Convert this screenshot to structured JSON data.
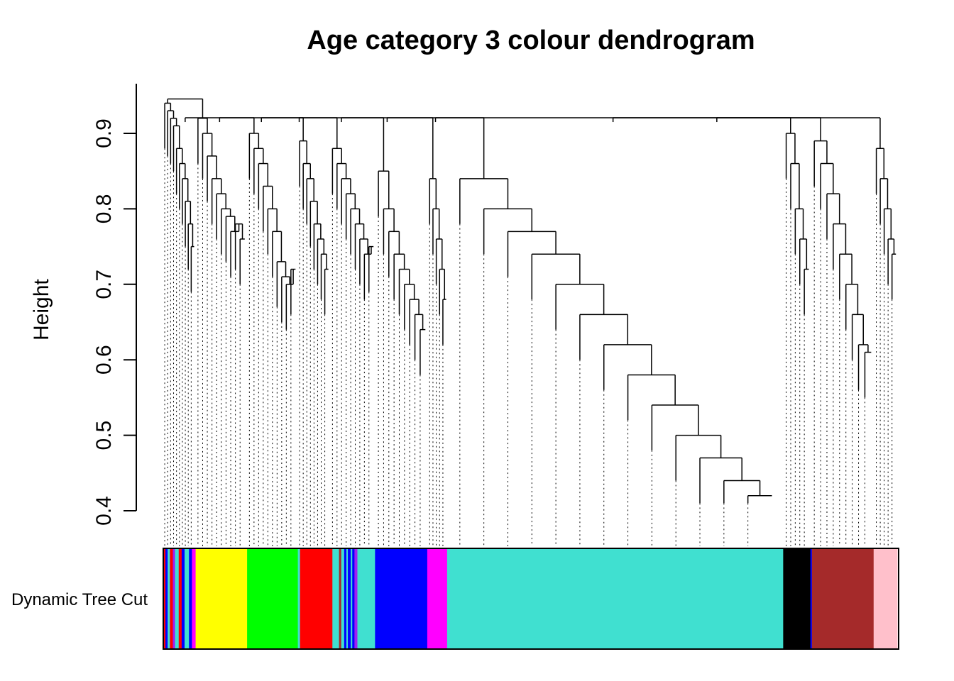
{
  "chart_data": {
    "type": "dendrogram",
    "title": "Age category 3 colour dendrogram",
    "ylabel": "Height",
    "xlabel": "",
    "ylim": [
      0.4,
      0.95
    ],
    "yticks": [
      0.4,
      0.5,
      0.6,
      0.7,
      0.8,
      0.9
    ],
    "color_bar_label": "Dynamic Tree Cut",
    "root_merge_height": 0.915,
    "clusters": [
      {
        "name": "mixed-small",
        "color": "#b0306a",
        "width_fraction": 0.044,
        "merge_heights": [
          0.94,
          0.93,
          0.92,
          0.91,
          0.88,
          0.86,
          0.84,
          0.81,
          0.78,
          0.75
        ]
      },
      {
        "name": "yellow",
        "color": "#ffff00",
        "width_fraction": 0.07,
        "merge_heights": [
          0.92,
          0.9,
          0.87,
          0.84,
          0.82,
          0.8,
          0.79,
          0.77,
          0.78,
          0.76
        ]
      },
      {
        "name": "green",
        "color": "#00ff00",
        "width_fraction": 0.069,
        "merge_heights": [
          0.9,
          0.88,
          0.86,
          0.83,
          0.8,
          0.77,
          0.73,
          0.71,
          0.7,
          0.72
        ]
      },
      {
        "name": "red",
        "color": "#ff0000",
        "width_fraction": 0.044,
        "merge_heights": [
          0.89,
          0.86,
          0.84,
          0.81,
          0.78,
          0.76,
          0.74,
          0.72
        ]
      },
      {
        "name": "mixed-blue",
        "color": "#40e0d0",
        "width_fraction": 0.062,
        "merge_heights": [
          0.88,
          0.86,
          0.84,
          0.82,
          0.8,
          0.78,
          0.76,
          0.74,
          0.75
        ]
      },
      {
        "name": "blue",
        "color": "#0000ff",
        "width_fraction": 0.071,
        "merge_heights": [
          0.85,
          0.8,
          0.77,
          0.74,
          0.72,
          0.7,
          0.68,
          0.66,
          0.64
        ]
      },
      {
        "name": "magenta",
        "color": "#ff00ff",
        "width_fraction": 0.027,
        "merge_heights": [
          0.84,
          0.8,
          0.76,
          0.72,
          0.68
        ]
      },
      {
        "name": "turquoise",
        "color": "#40e0d0",
        "width_fraction": 0.457,
        "merge_heights": [
          0.84,
          0.8,
          0.77,
          0.74,
          0.7,
          0.66,
          0.62,
          0.58,
          0.54,
          0.5,
          0.47,
          0.44,
          0.42
        ]
      },
      {
        "name": "black",
        "color": "#000000",
        "width_fraction": 0.037,
        "merge_heights": [
          0.9,
          0.86,
          0.8,
          0.76,
          0.72
        ]
      },
      {
        "name": "brown",
        "color": "#a52a2a",
        "width_fraction": 0.086,
        "merge_heights": [
          0.89,
          0.86,
          0.82,
          0.78,
          0.74,
          0.7,
          0.66,
          0.62,
          0.61
        ]
      },
      {
        "name": "pink",
        "color": "#ffc0cb",
        "width_fraction": 0.032,
        "merge_heights": [
          0.88,
          0.84,
          0.8,
          0.76,
          0.74
        ]
      }
    ],
    "color_bar_segments": [
      {
        "color": "#ff0000",
        "width_fraction": 0.003
      },
      {
        "color": "#0000ff",
        "width_fraction": 0.003
      },
      {
        "color": "#40e0d0",
        "width_fraction": 0.003
      },
      {
        "color": "#ff0000",
        "width_fraction": 0.004
      },
      {
        "color": "#a020f0",
        "width_fraction": 0.003
      },
      {
        "color": "#40e0d0",
        "width_fraction": 0.005
      },
      {
        "color": "#ff0000",
        "width_fraction": 0.004
      },
      {
        "color": "#0000ff",
        "width_fraction": 0.004
      },
      {
        "color": "#40e0d0",
        "width_fraction": 0.006
      },
      {
        "color": "#0000ff",
        "width_fraction": 0.004
      },
      {
        "color": "#ff00ff",
        "width_fraction": 0.005
      },
      {
        "color": "#ffff00",
        "width_fraction": 0.07
      },
      {
        "color": "#00ff00",
        "width_fraction": 0.069
      },
      {
        "color": "#40e0d0",
        "width_fraction": 0.003
      },
      {
        "color": "#ff0000",
        "width_fraction": 0.044
      },
      {
        "color": "#40e0d0",
        "width_fraction": 0.009
      },
      {
        "color": "#a52a2a",
        "width_fraction": 0.003
      },
      {
        "color": "#40e0d0",
        "width_fraction": 0.004
      },
      {
        "color": "#0000ff",
        "width_fraction": 0.003
      },
      {
        "color": "#40e0d0",
        "width_fraction": 0.002
      },
      {
        "color": "#0000ff",
        "width_fraction": 0.004
      },
      {
        "color": "#40e0d0",
        "width_fraction": 0.002
      },
      {
        "color": "#0000ff",
        "width_fraction": 0.003
      },
      {
        "color": "#a020f0",
        "width_fraction": 0.004
      },
      {
        "color": "#40e0d0",
        "width_fraction": 0.024
      },
      {
        "color": "#0000ff",
        "width_fraction": 0.071
      },
      {
        "color": "#ff00ff",
        "width_fraction": 0.027
      },
      {
        "color": "#40e0d0",
        "width_fraction": 0.457
      },
      {
        "color": "#000000",
        "width_fraction": 0.037
      },
      {
        "color": "#0000ff",
        "width_fraction": 0.002
      },
      {
        "color": "#a52a2a",
        "width_fraction": 0.084
      },
      {
        "color": "#ffc0cb",
        "width_fraction": 0.032
      }
    ]
  }
}
